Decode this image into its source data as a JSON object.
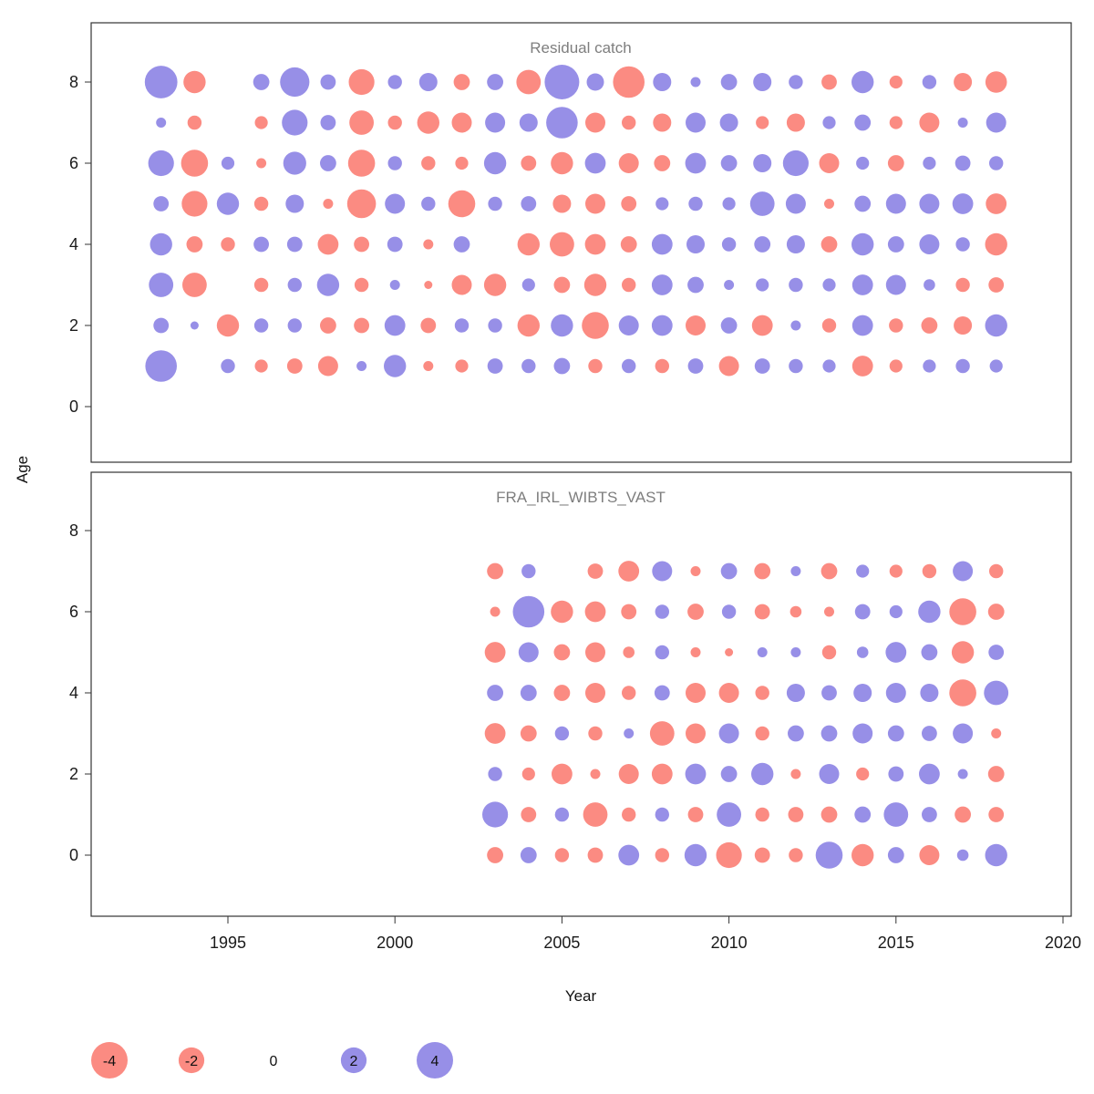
{
  "figure": {
    "xlabel": "Year",
    "ylabel": "Age",
    "x_ticks": [
      1995,
      2000,
      2005,
      2010,
      2015,
      2020
    ],
    "y_ticks": [
      0,
      2,
      4,
      6,
      8
    ],
    "colors": {
      "negative": "#fa6a5f",
      "positive": "#7a70e0"
    },
    "legend": {
      "values": [
        -4,
        -2,
        0,
        2,
        4
      ]
    }
  },
  "chart_data": [
    {
      "type": "bubble",
      "title": "Residual catch",
      "xlabel": "Year",
      "ylabel": "Age",
      "xlim": [
        1992,
        2020
      ],
      "ylim": [
        -1,
        9
      ],
      "years": [
        1993,
        1994,
        1995,
        1996,
        1997,
        1998,
        1999,
        2000,
        2001,
        2002,
        2003,
        2004,
        2005,
        2006,
        2007,
        2008,
        2009,
        2010,
        2011,
        2012,
        2013,
        2014,
        2015,
        2016,
        2017,
        2018
      ],
      "series": [
        {
          "age": 1,
          "values": [
            3.0,
            null,
            0.6,
            -0.5,
            -0.7,
            -1.2,
            0.3,
            1.5,
            -0.3,
            -0.5,
            0.7,
            0.6,
            0.8,
            -0.6,
            0.6,
            -0.6,
            0.7,
            -1.2,
            0.7,
            0.6,
            0.5,
            -1.3,
            -0.5,
            0.5,
            0.6,
            0.5
          ]
        },
        {
          "age": 2,
          "values": [
            0.7,
            0.2,
            -1.5,
            0.6,
            0.6,
            -0.8,
            -0.7,
            1.3,
            -0.7,
            0.6,
            0.6,
            -1.5,
            1.5,
            -2.2,
            1.2,
            1.3,
            -1.2,
            0.8,
            -1.3,
            0.3,
            -0.6,
            1.3,
            -0.6,
            -0.8,
            -1.0,
            1.5
          ]
        },
        {
          "age": 3,
          "values": [
            1.8,
            -1.8,
            null,
            -0.6,
            0.6,
            1.5,
            -0.6,
            0.3,
            -0.2,
            -1.2,
            -1.5,
            0.5,
            -0.8,
            -1.5,
            -0.6,
            1.3,
            0.8,
            0.3,
            0.5,
            0.6,
            0.5,
            1.3,
            1.2,
            0.4,
            -0.6,
            -0.7
          ]
        },
        {
          "age": 4,
          "values": [
            1.5,
            -0.8,
            -0.6,
            0.7,
            0.7,
            -1.3,
            -0.7,
            0.7,
            -0.3,
            0.8,
            null,
            -1.5,
            -1.8,
            -1.3,
            -0.8,
            1.3,
            1.0,
            0.6,
            0.8,
            1.0,
            -0.8,
            1.5,
            0.8,
            1.2,
            0.6,
            -1.5
          ]
        },
        {
          "age": 5,
          "values": [
            0.7,
            -2.0,
            1.5,
            -0.6,
            1.0,
            -0.3,
            -2.5,
            1.2,
            0.6,
            -2.2,
            0.6,
            0.7,
            -1.0,
            -1.2,
            -0.7,
            0.5,
            0.6,
            0.5,
            1.8,
            1.2,
            -0.3,
            0.8,
            1.2,
            1.2,
            1.3,
            -1.3
          ]
        },
        {
          "age": 6,
          "values": [
            2.0,
            -2.2,
            0.5,
            -0.3,
            1.6,
            0.8,
            -2.2,
            0.6,
            -0.6,
            -0.5,
            1.5,
            -0.7,
            -1.5,
            1.3,
            -1.2,
            -0.8,
            1.3,
            0.8,
            1.0,
            2.0,
            -1.2,
            0.5,
            -0.8,
            0.5,
            0.7,
            0.6
          ]
        },
        {
          "age": 7,
          "values": [
            0.3,
            -0.6,
            null,
            -0.5,
            2.0,
            0.7,
            -1.8,
            -0.6,
            -1.5,
            -1.2,
            1.2,
            1.0,
            3.0,
            -1.2,
            -0.6,
            -1.0,
            1.2,
            1.0,
            -0.5,
            -1.0,
            0.5,
            0.8,
            -0.5,
            -1.2,
            0.3,
            1.2
          ]
        },
        {
          "age": 8,
          "values": [
            3.2,
            -1.5,
            null,
            0.8,
            2.6,
            0.7,
            -2.0,
            0.6,
            1.0,
            -0.8,
            0.8,
            -1.8,
            3.6,
            0.9,
            -3.0,
            1.0,
            0.3,
            0.8,
            1.0,
            0.6,
            -0.7,
            1.5,
            -0.5,
            0.6,
            -1.0,
            -1.4
          ]
        }
      ]
    },
    {
      "type": "bubble",
      "title": "FRA_IRL_WIBTS_VAST",
      "xlabel": "Year",
      "ylabel": "Age",
      "xlim": [
        1992,
        2020
      ],
      "ylim": [
        -1,
        9
      ],
      "years": [
        2003,
        2004,
        2005,
        2006,
        2007,
        2008,
        2009,
        2010,
        2011,
        2012,
        2013,
        2014,
        2015,
        2016,
        2017,
        2018
      ],
      "series": [
        {
          "age": 0,
          "values": [
            -0.8,
            0.8,
            -0.6,
            -0.7,
            1.3,
            -0.6,
            1.5,
            -2.0,
            -0.7,
            -0.6,
            2.2,
            -1.5,
            0.8,
            -1.2,
            0.4,
            1.5
          ]
        },
        {
          "age": 1,
          "values": [
            2.0,
            -0.7,
            0.6,
            -1.8,
            -0.6,
            0.6,
            -0.7,
            1.8,
            -0.6,
            -0.7,
            -0.8,
            0.8,
            1.8,
            0.7,
            -0.8,
            -0.7
          ]
        },
        {
          "age": 2,
          "values": [
            0.6,
            -0.5,
            -1.3,
            -0.3,
            -1.2,
            -1.3,
            1.3,
            0.8,
            1.5,
            -0.3,
            1.2,
            -0.5,
            0.7,
            1.3,
            0.3,
            -0.8
          ]
        },
        {
          "age": 3,
          "values": [
            -1.3,
            -0.8,
            0.6,
            -0.6,
            0.3,
            -1.8,
            -1.2,
            1.2,
            -0.6,
            0.8,
            0.8,
            1.2,
            0.8,
            0.7,
            1.2,
            -0.3
          ]
        },
        {
          "age": 4,
          "values": [
            0.8,
            0.8,
            -0.8,
            -1.2,
            -0.6,
            0.7,
            -1.2,
            -1.2,
            -0.6,
            1.0,
            0.7,
            1.0,
            1.2,
            1.0,
            -2.2,
            1.8
          ]
        },
        {
          "age": 5,
          "values": [
            -1.3,
            1.2,
            -0.8,
            -1.2,
            -0.4,
            0.6,
            -0.3,
            -0.2,
            0.3,
            0.3,
            -0.6,
            0.4,
            1.3,
            0.8,
            -1.5,
            0.7
          ]
        },
        {
          "age": 6,
          "values": [
            -0.3,
            3.0,
            -1.5,
            -1.3,
            -0.7,
            0.6,
            -0.8,
            0.6,
            -0.7,
            -0.4,
            -0.3,
            0.7,
            0.5,
            1.5,
            -2.2,
            -0.8
          ]
        },
        {
          "age": 7,
          "values": [
            -0.8,
            0.6,
            null,
            -0.7,
            -1.3,
            1.2,
            -0.3,
            0.8,
            -0.8,
            0.3,
            -0.8,
            0.5,
            -0.5,
            -0.6,
            1.2,
            -0.6
          ]
        }
      ]
    }
  ]
}
